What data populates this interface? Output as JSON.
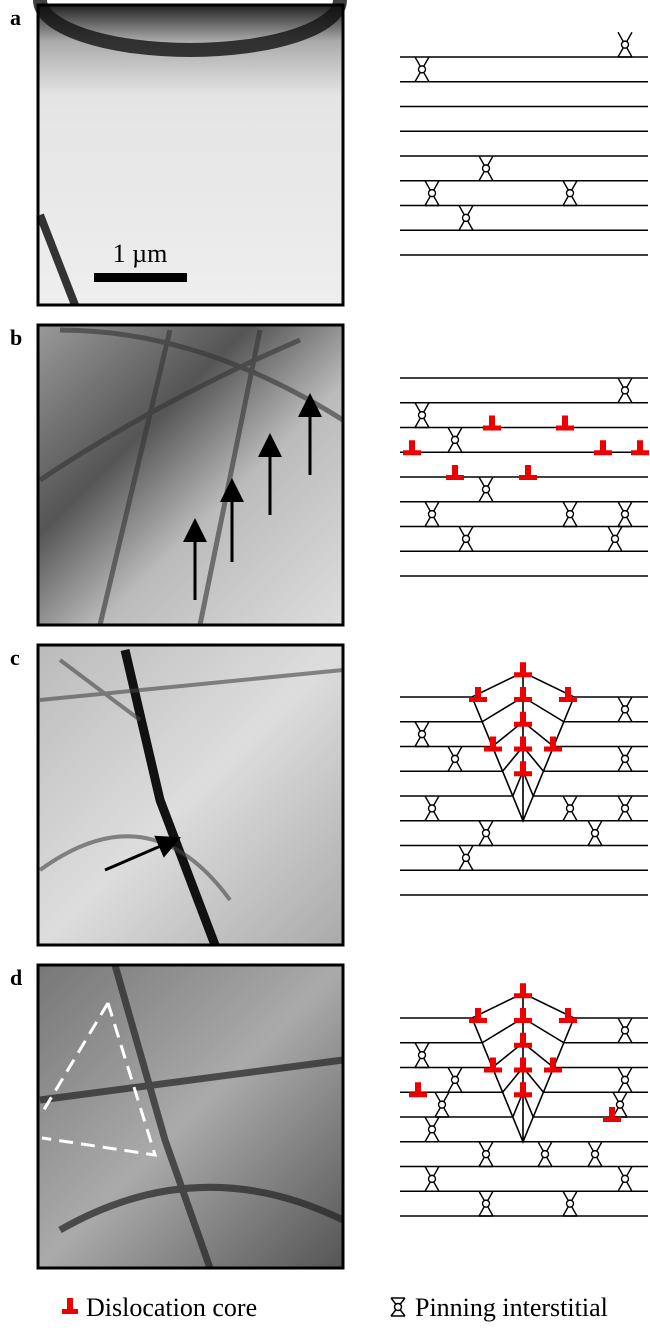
{
  "panels": [
    {
      "label": "a"
    },
    {
      "label": "b"
    },
    {
      "label": "c"
    },
    {
      "label": "d"
    }
  ],
  "scale_bar": "1 µm",
  "legend": {
    "dislocation": "Dislocation core",
    "pinning": "Pinning interstitial"
  }
}
